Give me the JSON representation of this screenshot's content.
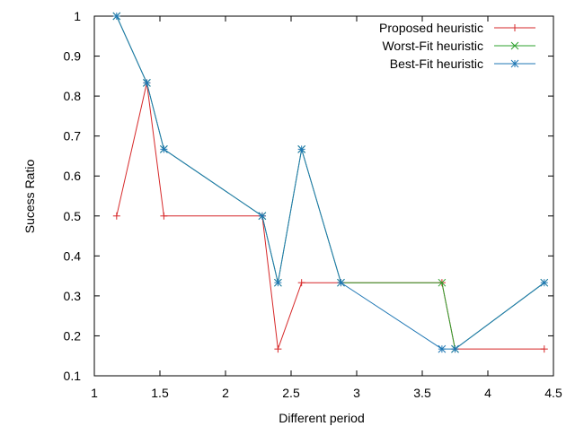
{
  "chart_data": {
    "type": "line",
    "title": "",
    "xlabel": "Different period",
    "ylabel": "Sucess Ratio",
    "xlim": [
      1,
      4.5
    ],
    "ylim": [
      0.1,
      1
    ],
    "x_ticks": [
      1,
      1.5,
      2,
      2.5,
      3,
      3.5,
      4,
      4.5
    ],
    "x_tick_labels": [
      "1",
      "1.5",
      "2",
      "2.5",
      "3",
      "3.5",
      "4",
      "4.5"
    ],
    "y_ticks": [
      0.1,
      0.2,
      0.3,
      0.4,
      0.5,
      0.6,
      0.7,
      0.8,
      0.9,
      1
    ],
    "y_tick_labels": [
      "0.1",
      "0.2",
      "0.3",
      "0.4",
      "0.5",
      "0.6",
      "0.7",
      "0.8",
      "0.9",
      "1"
    ],
    "grid": false,
    "legend_position": "top-right",
    "series": [
      {
        "name": "Proposed heuristic",
        "color": "#d62728",
        "marker": "plus",
        "x": [
          1.17,
          1.4,
          1.53,
          2.28,
          2.4,
          2.58,
          2.88,
          3.65,
          3.75,
          4.43
        ],
        "y": [
          0.5,
          0.833,
          0.5,
          0.5,
          0.167,
          0.333,
          0.333,
          0.333,
          0.167,
          0.167
        ]
      },
      {
        "name": "Worst-Fit heuristic",
        "color": "#2ca02c",
        "marker": "cross",
        "x": [
          1.17,
          1.4,
          1.53,
          2.28,
          2.4,
          2.58,
          2.88,
          3.65,
          3.75,
          4.43
        ],
        "y": [
          1.0,
          0.833,
          0.667,
          0.5,
          0.333,
          0.667,
          0.333,
          0.333,
          0.167,
          0.333
        ]
      },
      {
        "name": "Best-Fit heuristic",
        "color": "#1f77b4",
        "marker": "star",
        "x": [
          1.17,
          1.4,
          1.53,
          2.28,
          2.4,
          2.58,
          2.88,
          3.65,
          3.75,
          4.43
        ],
        "y": [
          1.0,
          0.833,
          0.667,
          0.5,
          0.333,
          0.667,
          0.333,
          0.167,
          0.167,
          0.333
        ]
      }
    ]
  }
}
